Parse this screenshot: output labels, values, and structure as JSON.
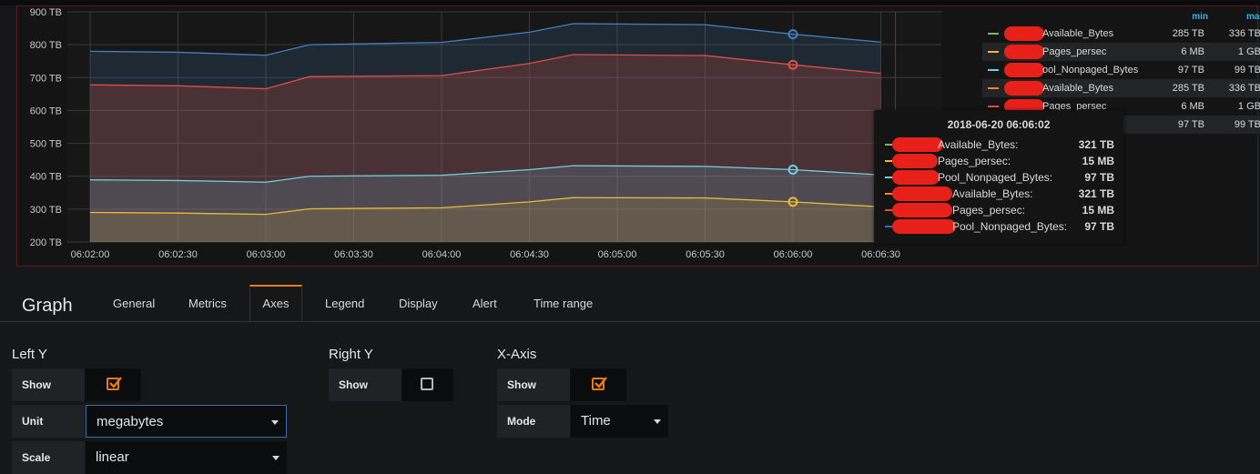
{
  "chart_data": {
    "type": "area",
    "xlabel": "",
    "ylabel": "",
    "ylim_tb": [
      200,
      900
    ],
    "y_ticks": [
      "900 TB",
      "800 TB",
      "700 TB",
      "600 TB",
      "500 TB",
      "400 TB",
      "300 TB",
      "200 TB"
    ],
    "x_ticks": [
      "06:02:00",
      "06:02:30",
      "06:03:00",
      "06:03:30",
      "06:04:00",
      "06:04:30",
      "06:05:00",
      "06:05:30",
      "06:06:00",
      "06:06:30"
    ],
    "x_seconds": [
      0,
      30,
      60,
      90,
      120,
      150,
      180,
      210,
      240,
      270
    ],
    "series": [
      {
        "color": "#447ebc",
        "x": [
          0,
          30,
          60,
          75,
          120,
          150,
          165,
          210,
          240,
          270
        ],
        "values": [
          780,
          777,
          768,
          800,
          807,
          838,
          864,
          861,
          832,
          808
        ]
      },
      {
        "color": "#e24d42",
        "x": [
          0,
          30,
          60,
          75,
          120,
          150,
          165,
          210,
          240,
          270
        ],
        "values": [
          678,
          675,
          666,
          703,
          706,
          743,
          770,
          767,
          739,
          713
        ]
      },
      {
        "color": "#6ed0e0",
        "x": [
          0,
          30,
          60,
          75,
          120,
          150,
          165,
          210,
          240,
          270
        ],
        "values": [
          389,
          387,
          382,
          400,
          403,
          420,
          432,
          430,
          420,
          404
        ]
      },
      {
        "color": "#eab839",
        "x": [
          0,
          30,
          60,
          75,
          120,
          150,
          165,
          210,
          240,
          270
        ],
        "values": [
          290,
          288,
          284,
          301,
          304,
          322,
          335,
          334,
          322,
          307
        ]
      }
    ],
    "hover_x": 240
  },
  "legend": {
    "min_label": "min",
    "max_label": "max",
    "rows": [
      {
        "color": "#7eb26d",
        "name": "Available_Bytes",
        "min": "285 TB",
        "max": "336 TB"
      },
      {
        "color": "#eab839",
        "name": "Pages_persec",
        "min": "6 MB",
        "max": "1 GB"
      },
      {
        "color": "#6ed0e0",
        "name": "ool_Nonpaged_Bytes",
        "min": "97 TB",
        "max": "99 TB"
      },
      {
        "color": "#ef843c",
        "name": "Available_Bytes",
        "min": "285 TB",
        "max": "336 TB"
      },
      {
        "color": "#e24d42",
        "name": "Pages_persec",
        "min": "6 MB",
        "max": "1 GB"
      },
      {
        "color": "#1f78c1",
        "name": "tes",
        "min": "97 TB",
        "max": "99 TB"
      }
    ]
  },
  "tooltip": {
    "time": "2018-06-20 06:06:02",
    "rows": [
      {
        "color": "#7eb26d",
        "name": "Available_Bytes:",
        "value": "321 TB"
      },
      {
        "color": "#eab839",
        "name": "Pages_persec:",
        "value": "15 MB"
      },
      {
        "color": "#6ed0e0",
        "name": "Pool_Nonpaged_Bytes:",
        "value": "97 TB"
      },
      {
        "color": "#ef843c",
        "name": "Available_Bytes:",
        "value": "321 TB"
      },
      {
        "color": "#e24d42",
        "name": "Pages_persec:",
        "value": "15 MB"
      },
      {
        "color": "#1f78c1",
        "name": "Pool_Nonpaged_Bytes:",
        "value": "97 TB"
      }
    ]
  },
  "editor": {
    "title": "Graph",
    "tabs": [
      "General",
      "Metrics",
      "Axes",
      "Legend",
      "Display",
      "Alert",
      "Time range"
    ],
    "active_tab": "Axes"
  },
  "left_y": {
    "title": "Left Y",
    "show_label": "Show",
    "show_checked": true,
    "unit_label": "Unit",
    "unit_value": "megabytes",
    "scale_label": "Scale",
    "scale_value": "linear"
  },
  "right_y": {
    "title": "Right Y",
    "show_label": "Show",
    "show_checked": false
  },
  "x_axis": {
    "title": "X-Axis",
    "show_label": "Show",
    "show_checked": true,
    "mode_label": "Mode",
    "mode_value": "Time"
  },
  "colors": {
    "accent": "#eb7b18",
    "panel_border": "#5a1a1a",
    "legend_header": "#33b5e5"
  }
}
